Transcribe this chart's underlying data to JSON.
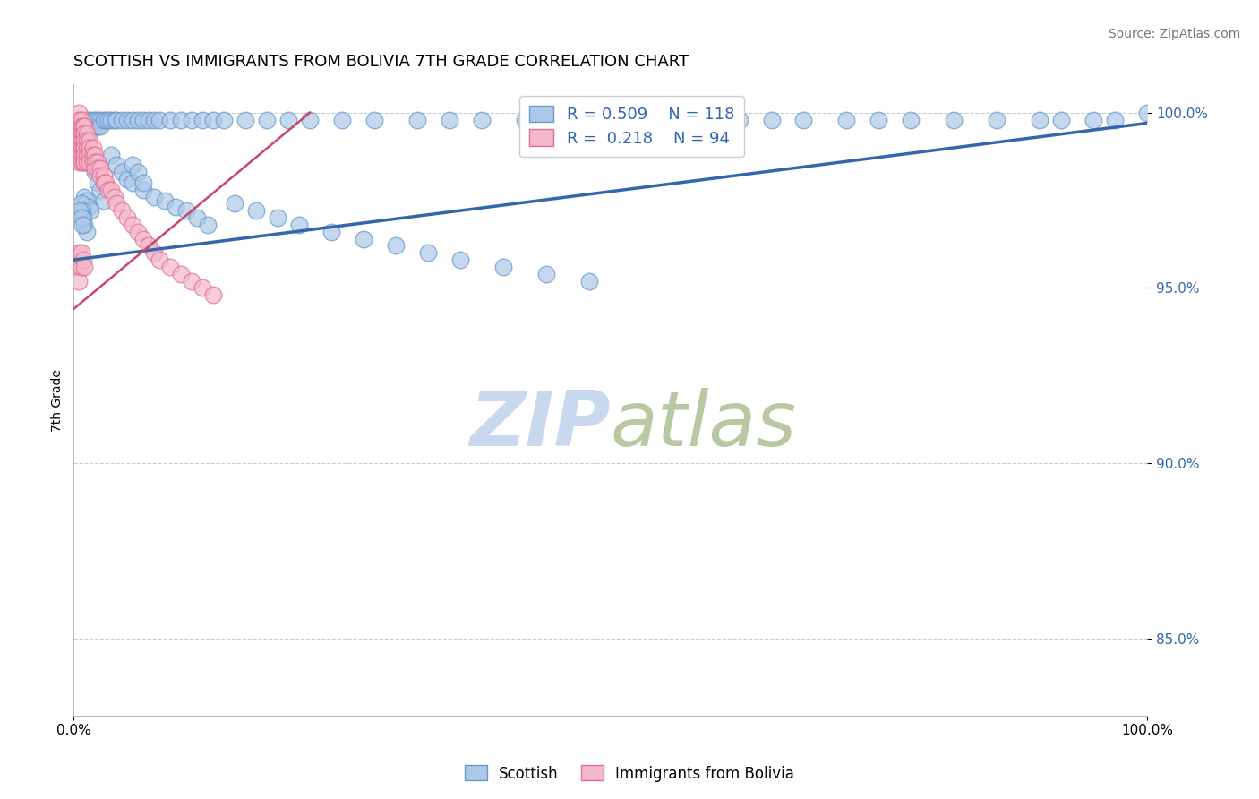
{
  "title": "SCOTTISH VS IMMIGRANTS FROM BOLIVIA 7TH GRADE CORRELATION CHART",
  "source_text": "Source: ZipAtlas.com",
  "ylabel": "7th Grade",
  "xlim": [
    0.0,
    1.0
  ],
  "ylim": [
    0.828,
    1.008
  ],
  "yticks": [
    0.85,
    0.9,
    0.95,
    1.0
  ],
  "ytick_labels": [
    "85.0%",
    "90.0%",
    "95.0%",
    "100.0%"
  ],
  "xticks": [
    0.0,
    1.0
  ],
  "xtick_labels": [
    "0.0%",
    "100.0%"
  ],
  "blue_color": "#adc8e8",
  "blue_edge_color": "#6699cc",
  "pink_color": "#f5b8cb",
  "pink_edge_color": "#e07090",
  "blue_line_color": "#3366aa",
  "pink_line_color": "#cc4466",
  "legend_R_blue": "R = 0.509",
  "legend_N_blue": "N = 118",
  "legend_R_pink": "R =  0.218",
  "legend_N_pink": "N = 94",
  "watermark_ZIP": "ZIP",
  "watermark_atlas": "atlas",
  "watermark_color_ZIP": "#c8d8ee",
  "watermark_color_atlas": "#c8d8a8",
  "series1_label": "Scottish",
  "series2_label": "Immigrants from Bolivia",
  "blue_trendline_x": [
    0.0,
    1.0
  ],
  "blue_trendline_y": [
    0.958,
    0.997
  ],
  "pink_trendline_x": [
    0.0,
    0.22
  ],
  "pink_trendline_y": [
    0.944,
    1.0
  ],
  "grid_color": "#cccccc",
  "background_color": "#ffffff",
  "title_fontsize": 13,
  "axis_label_fontsize": 10,
  "tick_fontsize": 11,
  "legend_fontsize": 13,
  "source_fontsize": 10,
  "blue_scatter_x": [
    0.005,
    0.005,
    0.005,
    0.007,
    0.007,
    0.007,
    0.007,
    0.007,
    0.009,
    0.009,
    0.009,
    0.009,
    0.009,
    0.01,
    0.01,
    0.01,
    0.01,
    0.012,
    0.012,
    0.012,
    0.012,
    0.015,
    0.015,
    0.015,
    0.018,
    0.018,
    0.02,
    0.02,
    0.022,
    0.022,
    0.025,
    0.025,
    0.028,
    0.03,
    0.032,
    0.035,
    0.038,
    0.04,
    0.045,
    0.05,
    0.055,
    0.06,
    0.065,
    0.07,
    0.075,
    0.08,
    0.09,
    0.1,
    0.11,
    0.12,
    0.13,
    0.14,
    0.16,
    0.18,
    0.2,
    0.22,
    0.25,
    0.28,
    0.32,
    0.35,
    0.38,
    0.42,
    0.46,
    0.5,
    0.54,
    0.58,
    0.62,
    0.65,
    0.68,
    0.72,
    0.75,
    0.78,
    0.82,
    0.86,
    0.9,
    0.92,
    0.95,
    0.97,
    1.0,
    0.035,
    0.04,
    0.045,
    0.05,
    0.055,
    0.065,
    0.075,
    0.085,
    0.095,
    0.105,
    0.115,
    0.125,
    0.055,
    0.06,
    0.065,
    0.018,
    0.02,
    0.022,
    0.025,
    0.028,
    0.01,
    0.012,
    0.014,
    0.016,
    0.007,
    0.008,
    0.009,
    0.01,
    0.012,
    0.006,
    0.007,
    0.008,
    0.15,
    0.17,
    0.19,
    0.21,
    0.24,
    0.27,
    0.3,
    0.33,
    0.36,
    0.4,
    0.44,
    0.48
  ],
  "blue_scatter_y": [
    0.998,
    0.996,
    0.994,
    0.998,
    0.996,
    0.994,
    0.992,
    0.99,
    0.998,
    0.996,
    0.994,
    0.992,
    0.99,
    0.998,
    0.996,
    0.994,
    0.992,
    0.998,
    0.996,
    0.994,
    0.992,
    0.998,
    0.996,
    0.994,
    0.998,
    0.996,
    0.998,
    0.996,
    0.998,
    0.996,
    0.998,
    0.996,
    0.998,
    0.998,
    0.998,
    0.998,
    0.998,
    0.998,
    0.998,
    0.998,
    0.998,
    0.998,
    0.998,
    0.998,
    0.998,
    0.998,
    0.998,
    0.998,
    0.998,
    0.998,
    0.998,
    0.998,
    0.998,
    0.998,
    0.998,
    0.998,
    0.998,
    0.998,
    0.998,
    0.998,
    0.998,
    0.998,
    0.998,
    0.998,
    0.998,
    0.998,
    0.998,
    0.998,
    0.998,
    0.998,
    0.998,
    0.998,
    0.998,
    0.998,
    0.998,
    0.998,
    0.998,
    0.998,
    1.0,
    0.988,
    0.985,
    0.983,
    0.981,
    0.98,
    0.978,
    0.976,
    0.975,
    0.973,
    0.972,
    0.97,
    0.968,
    0.985,
    0.983,
    0.98,
    0.985,
    0.983,
    0.98,
    0.978,
    0.975,
    0.976,
    0.975,
    0.973,
    0.972,
    0.974,
    0.972,
    0.97,
    0.968,
    0.966,
    0.972,
    0.97,
    0.968,
    0.974,
    0.972,
    0.97,
    0.968,
    0.966,
    0.964,
    0.962,
    0.96,
    0.958,
    0.956,
    0.954,
    0.952
  ],
  "pink_scatter_x": [
    0.005,
    0.005,
    0.005,
    0.005,
    0.005,
    0.005,
    0.005,
    0.005,
    0.007,
    0.007,
    0.007,
    0.007,
    0.007,
    0.007,
    0.007,
    0.009,
    0.009,
    0.009,
    0.009,
    0.009,
    0.009,
    0.01,
    0.01,
    0.01,
    0.01,
    0.01,
    0.01,
    0.012,
    0.012,
    0.012,
    0.012,
    0.012,
    0.015,
    0.015,
    0.015,
    0.015,
    0.018,
    0.018,
    0.018,
    0.02,
    0.02,
    0.02,
    0.022,
    0.022,
    0.025,
    0.025,
    0.028,
    0.028,
    0.03,
    0.032,
    0.035,
    0.038,
    0.04,
    0.045,
    0.05,
    0.055,
    0.06,
    0.065,
    0.07,
    0.075,
    0.08,
    0.09,
    0.1,
    0.11,
    0.12,
    0.13,
    0.005,
    0.005,
    0.005,
    0.007,
    0.007,
    0.009,
    0.01
  ],
  "pink_scatter_y": [
    1.0,
    0.998,
    0.996,
    0.994,
    0.992,
    0.99,
    0.988,
    0.986,
    0.998,
    0.996,
    0.994,
    0.992,
    0.99,
    0.988,
    0.986,
    0.996,
    0.994,
    0.992,
    0.99,
    0.988,
    0.986,
    0.996,
    0.994,
    0.992,
    0.99,
    0.988,
    0.986,
    0.994,
    0.992,
    0.99,
    0.988,
    0.986,
    0.992,
    0.99,
    0.988,
    0.986,
    0.99,
    0.988,
    0.986,
    0.988,
    0.986,
    0.984,
    0.986,
    0.984,
    0.984,
    0.982,
    0.982,
    0.98,
    0.98,
    0.978,
    0.978,
    0.976,
    0.974,
    0.972,
    0.97,
    0.968,
    0.966,
    0.964,
    0.962,
    0.96,
    0.958,
    0.956,
    0.954,
    0.952,
    0.95,
    0.948,
    0.96,
    0.956,
    0.952,
    0.96,
    0.956,
    0.958,
    0.956
  ]
}
